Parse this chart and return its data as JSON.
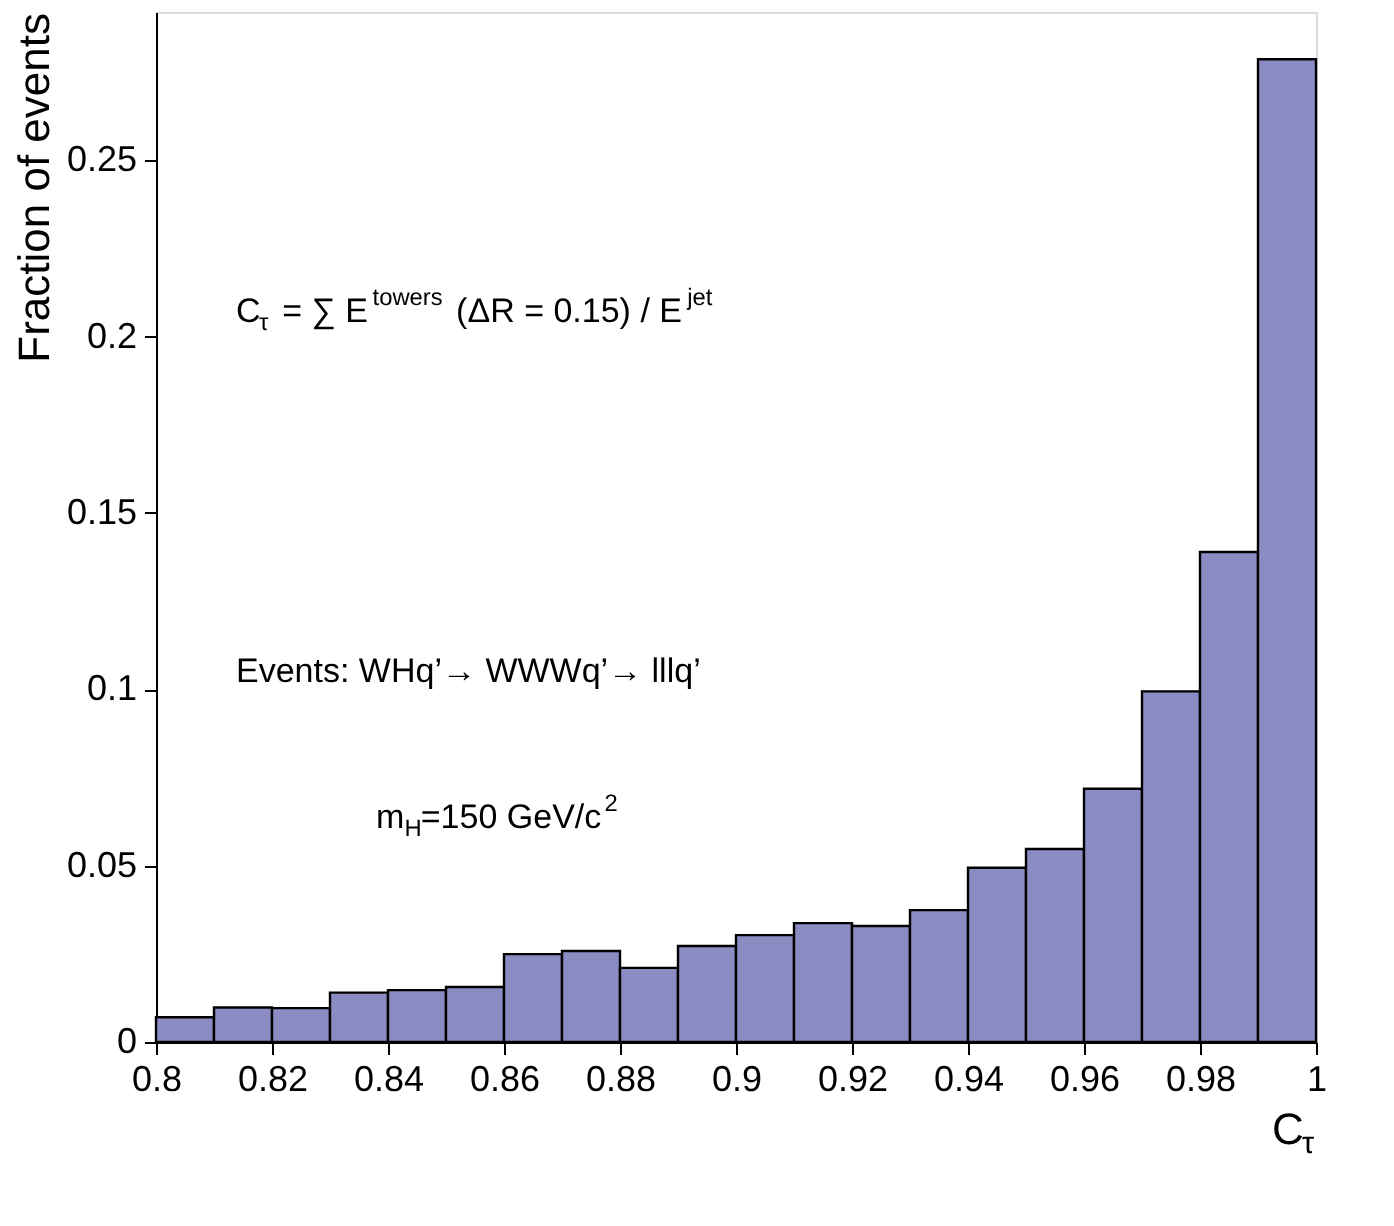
{
  "chart_data": {
    "type": "histogram",
    "xlabel": "C$_{τ}$",
    "ylabel": "Fraction of events",
    "bins": [
      0.8,
      0.81,
      0.82,
      0.83,
      0.84,
      0.85,
      0.86,
      0.87,
      0.88,
      0.89,
      0.9,
      0.91,
      0.92,
      0.93,
      0.94,
      0.95,
      0.96,
      0.97,
      0.98,
      0.99,
      1.0
    ],
    "values": [
      0.007,
      0.0098,
      0.0096,
      0.014,
      0.0147,
      0.0156,
      0.0249,
      0.0258,
      0.021,
      0.0272,
      0.0303,
      0.0337,
      0.0329,
      0.0374,
      0.0494,
      0.0547,
      0.0718,
      0.0994,
      0.1389,
      0.2786
    ],
    "color": "#8c8cc4",
    "xlim": [
      0.8,
      1.0
    ],
    "ylim": [
      0,
      0.292
    ],
    "xticks": [
      0.8,
      0.82,
      0.84,
      0.86,
      0.88,
      0.9,
      0.92,
      0.94,
      0.96,
      0.98,
      1
    ],
    "yticks": [
      0,
      0.05,
      0.1,
      0.15,
      0.2,
      0.25
    ],
    "grid": false,
    "annotations": [
      "C$_{τ}$ = ∑ E$^{towers}$ (ΔR = 0.15) / E$^{jet}$",
      "Events: WHq’→ WWWq’→ lllq’",
      "m$_{H}$=150 GeV/c$^{2}$"
    ]
  }
}
